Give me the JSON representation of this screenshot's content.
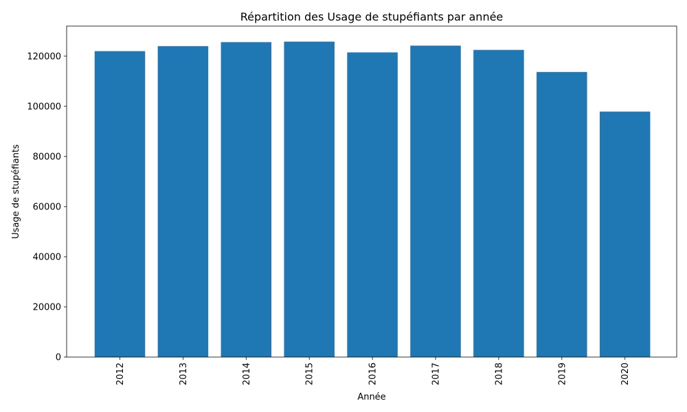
{
  "chart_data": {
    "type": "bar",
    "title": "Répartition des Usage de stupéfiants par année",
    "xlabel": "Année",
    "ylabel": "Usage de stupéfiants",
    "categories": [
      "2012",
      "2013",
      "2014",
      "2015",
      "2016",
      "2017",
      "2018",
      "2019",
      "2020"
    ],
    "values": [
      122000,
      124000,
      125600,
      125800,
      121500,
      124200,
      122500,
      113700,
      97900
    ],
    "ylim": [
      0,
      132000
    ],
    "yticks": [
      0,
      20000,
      40000,
      60000,
      80000,
      100000,
      120000
    ],
    "bar_color": "#1f77b4",
    "grid": false,
    "legend": "none",
    "x_tick_rotation": "vertical"
  }
}
